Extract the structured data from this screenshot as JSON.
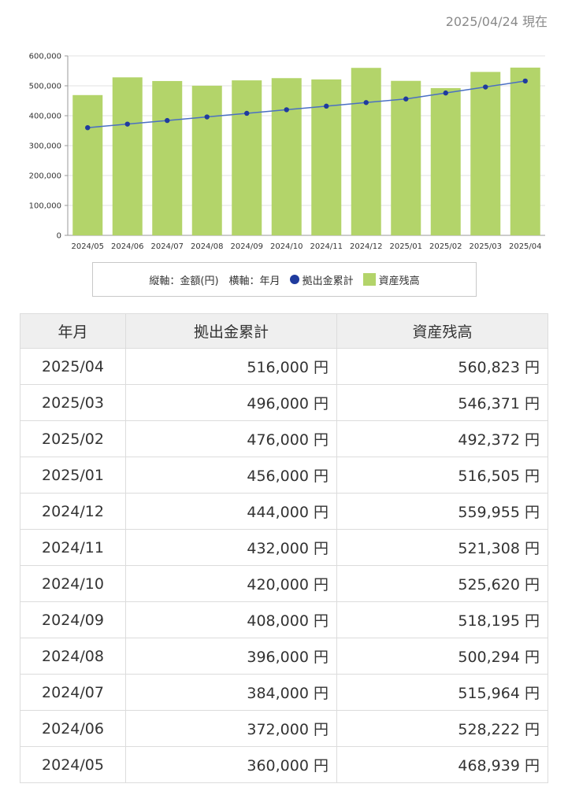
{
  "as_of": "2025/04/24 現在",
  "legend": {
    "axis_note": "縦軸：金額(円)　横軸：年月",
    "line_label": "拠出金累計",
    "bar_label": "資産残高"
  },
  "colors": {
    "bar": "#b3d46a",
    "line": "#4a6fc4",
    "point": "#1f3b9e"
  },
  "chart_data": {
    "type": "bar",
    "categories": [
      "2024/05",
      "2024/06",
      "2024/07",
      "2024/08",
      "2024/09",
      "2024/10",
      "2024/11",
      "2024/12",
      "2025/01",
      "2025/02",
      "2025/03",
      "2025/04"
    ],
    "series": [
      {
        "name": "資産残高",
        "type": "bar",
        "values": [
          468939,
          528222,
          515964,
          500294,
          518195,
          525620,
          521308,
          559955,
          516505,
          492372,
          546371,
          560823
        ]
      },
      {
        "name": "拠出金累計",
        "type": "line",
        "values": [
          360000,
          372000,
          384000,
          396000,
          408000,
          420000,
          432000,
          444000,
          456000,
          476000,
          496000,
          516000
        ]
      }
    ],
    "ylim": [
      0,
      600000
    ],
    "yticks": [
      "0",
      "100,000",
      "200,000",
      "300,000",
      "400,000",
      "500,000",
      "600,000"
    ],
    "grid": true,
    "legend_position": "bottom"
  },
  "table": {
    "headers": [
      "年月",
      "拠出金累計",
      "資産残高"
    ],
    "rows": [
      [
        "2025/04",
        "516,000 円",
        "560,823 円"
      ],
      [
        "2025/03",
        "496,000 円",
        "546,371 円"
      ],
      [
        "2025/02",
        "476,000 円",
        "492,372 円"
      ],
      [
        "2025/01",
        "456,000 円",
        "516,505 円"
      ],
      [
        "2024/12",
        "444,000 円",
        "559,955 円"
      ],
      [
        "2024/11",
        "432,000 円",
        "521,308 円"
      ],
      [
        "2024/10",
        "420,000 円",
        "525,620 円"
      ],
      [
        "2024/09",
        "408,000 円",
        "518,195 円"
      ],
      [
        "2024/08",
        "396,000 円",
        "500,294 円"
      ],
      [
        "2024/07",
        "384,000 円",
        "515,964 円"
      ],
      [
        "2024/06",
        "372,000 円",
        "528,222 円"
      ],
      [
        "2024/05",
        "360,000 円",
        "468,939 円"
      ]
    ]
  }
}
